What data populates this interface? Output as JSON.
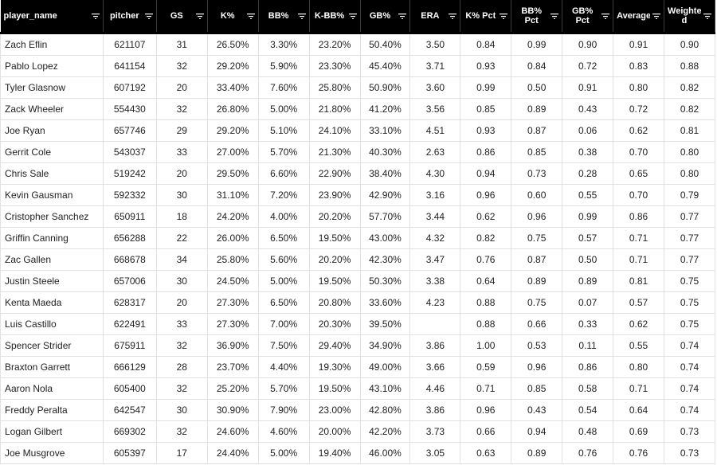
{
  "columns": [
    "player_name",
    "pitcher",
    "GS",
    "K%",
    "BB%",
    "K-BB%",
    "GB%",
    "ERA",
    "K% Pct",
    "BB% Pct",
    "GB% Pct",
    "Average",
    "Weighted"
  ],
  "column_labels": [
    "player_name",
    "pitcher",
    "GS",
    "K%",
    "BB%",
    "K-BB%",
    "GB%",
    "ERA",
    "K% Pct",
    "BB%\nPct",
    "GB%\nPct",
    "Average",
    "Weighte\nd"
  ],
  "icons": {
    "filter": "filter-icon"
  },
  "colors": {
    "header_bg": "#000000",
    "header_text": "#ffffff",
    "grid": "#e2e2e2"
  },
  "rows": [
    [
      "Zach Eflin",
      "621107",
      "31",
      "26.50%",
      "3.30%",
      "23.20%",
      "50.40%",
      "3.50",
      "0.84",
      "0.99",
      "0.90",
      "0.91",
      "0.90"
    ],
    [
      "Pablo Lopez",
      "641154",
      "32",
      "29.20%",
      "5.90%",
      "23.30%",
      "45.40%",
      "3.71",
      "0.93",
      "0.84",
      "0.72",
      "0.83",
      "0.88"
    ],
    [
      "Tyler Glasnow",
      "607192",
      "20",
      "33.40%",
      "7.60%",
      "25.80%",
      "50.90%",
      "3.60",
      "0.99",
      "0.50",
      "0.91",
      "0.80",
      "0.82"
    ],
    [
      "Zack Wheeler",
      "554430",
      "32",
      "26.80%",
      "5.00%",
      "21.80%",
      "41.20%",
      "3.56",
      "0.85",
      "0.89",
      "0.43",
      "0.72",
      "0.82"
    ],
    [
      "Joe Ryan",
      "657746",
      "29",
      "29.20%",
      "5.10%",
      "24.10%",
      "33.10%",
      "4.51",
      "0.93",
      "0.87",
      "0.06",
      "0.62",
      "0.81"
    ],
    [
      "Gerrit Cole",
      "543037",
      "33",
      "27.00%",
      "5.70%",
      "21.30%",
      "40.30%",
      "2.63",
      "0.86",
      "0.85",
      "0.38",
      "0.70",
      "0.80"
    ],
    [
      "Chris Sale",
      "519242",
      "20",
      "29.50%",
      "6.60%",
      "22.90%",
      "38.40%",
      "4.30",
      "0.94",
      "0.73",
      "0.28",
      "0.65",
      "0.80"
    ],
    [
      "Kevin Gausman",
      "592332",
      "30",
      "31.10%",
      "7.20%",
      "23.90%",
      "42.90%",
      "3.16",
      "0.96",
      "0.60",
      "0.55",
      "0.70",
      "0.79"
    ],
    [
      "Cristopher Sanchez",
      "650911",
      "18",
      "24.20%",
      "4.00%",
      "20.20%",
      "57.70%",
      "3.44",
      "0.62",
      "0.96",
      "0.99",
      "0.86",
      "0.77"
    ],
    [
      "Griffin Canning",
      "656288",
      "22",
      "26.00%",
      "6.50%",
      "19.50%",
      "43.00%",
      "4.32",
      "0.82",
      "0.75",
      "0.57",
      "0.71",
      "0.77"
    ],
    [
      "Zac Gallen",
      "668678",
      "34",
      "25.80%",
      "5.60%",
      "20.20%",
      "42.30%",
      "3.47",
      "0.76",
      "0.87",
      "0.50",
      "0.71",
      "0.77"
    ],
    [
      "Justin Steele",
      "657006",
      "30",
      "24.50%",
      "5.00%",
      "19.50%",
      "50.30%",
      "3.38",
      "0.64",
      "0.89",
      "0.89",
      "0.81",
      "0.75"
    ],
    [
      "Kenta Maeda",
      "628317",
      "20",
      "27.30%",
      "6.50%",
      "20.80%",
      "33.60%",
      "4.23",
      "0.88",
      "0.75",
      "0.07",
      "0.57",
      "0.75"
    ],
    [
      "Luis Castillo",
      "622491",
      "33",
      "27.30%",
      "7.00%",
      "20.30%",
      "39.50%",
      "",
      "0.88",
      "0.66",
      "0.33",
      "0.62",
      "0.75"
    ],
    [
      "Spencer Strider",
      "675911",
      "32",
      "36.90%",
      "7.50%",
      "29.40%",
      "34.90%",
      "3.86",
      "1.00",
      "0.53",
      "0.11",
      "0.55",
      "0.74"
    ],
    [
      "Braxton Garrett",
      "666129",
      "28",
      "23.70%",
      "4.40%",
      "19.30%",
      "49.00%",
      "3.66",
      "0.59",
      "0.96",
      "0.86",
      "0.80",
      "0.74"
    ],
    [
      "Aaron Nola",
      "605400",
      "32",
      "25.20%",
      "5.70%",
      "19.50%",
      "43.10%",
      "4.46",
      "0.71",
      "0.85",
      "0.58",
      "0.71",
      "0.74"
    ],
    [
      "Freddy Peralta",
      "642547",
      "30",
      "30.90%",
      "7.90%",
      "23.00%",
      "42.80%",
      "3.86",
      "0.96",
      "0.43",
      "0.54",
      "0.64",
      "0.74"
    ],
    [
      "Logan Gilbert",
      "669302",
      "32",
      "24.60%",
      "4.60%",
      "20.00%",
      "42.20%",
      "3.73",
      "0.66",
      "0.94",
      "0.48",
      "0.69",
      "0.73"
    ],
    [
      "Joe Musgrove",
      "605397",
      "17",
      "24.40%",
      "5.00%",
      "19.40%",
      "46.00%",
      "3.05",
      "0.63",
      "0.89",
      "0.76",
      "0.76",
      "0.73"
    ]
  ]
}
